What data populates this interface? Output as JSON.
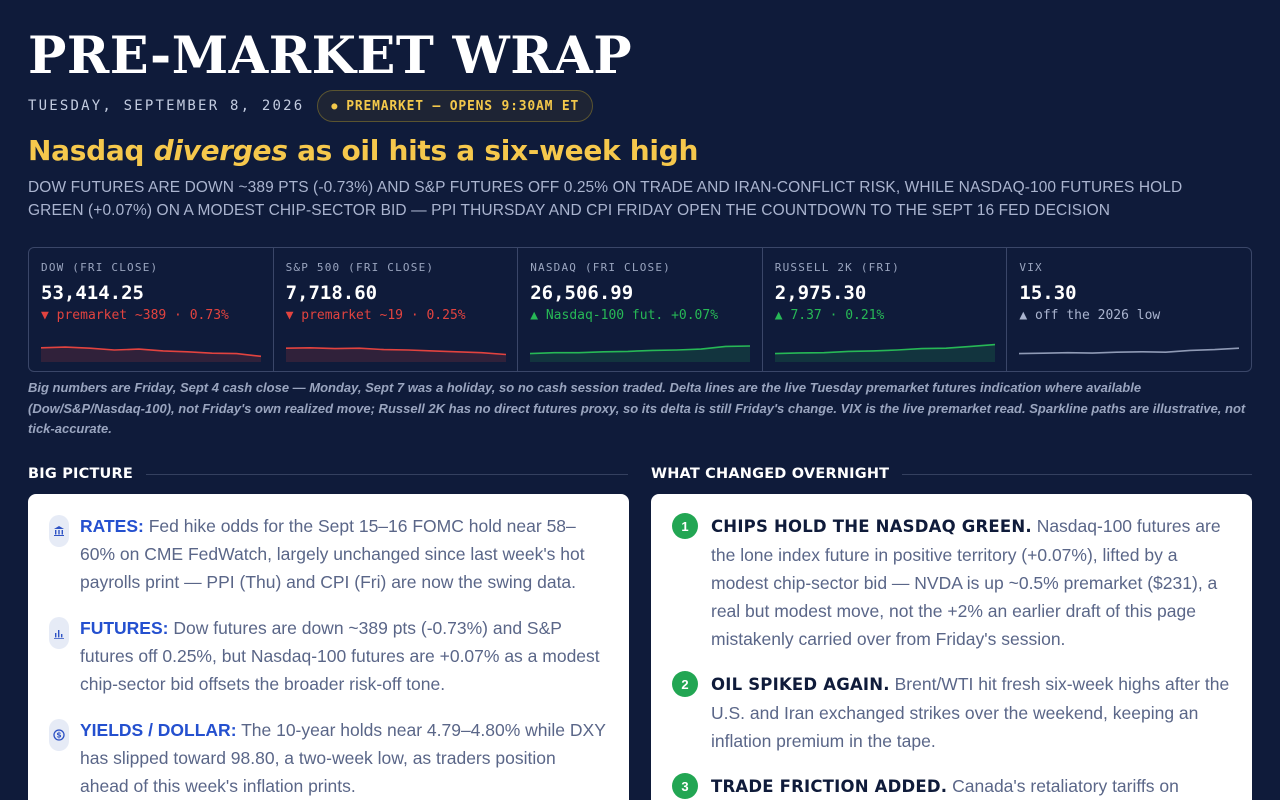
{
  "header": {
    "title": "PRE-MARKET WRAP",
    "date": "TUESDAY, SEPTEMBER 8, 2026",
    "status_pill": "PREMARKET — OPENS 9:30AM ET",
    "headline_before": "Nasdaq ",
    "headline_em": "diverges",
    "headline_after": " as oil hits a six-week high",
    "dek": "Dow futures are down ~389 pts (-0.73%) and S&P futures off 0.25% on trade and Iran-conflict risk, while Nasdaq-100 futures hold green (+0.07%) on a modest chip-sector bid — PPI Thursday and CPI Friday open the countdown to the Sept 16 Fed decision"
  },
  "ticker": [
    {
      "label": "DOW (FRI CLOSE)",
      "value": "53,414.25",
      "arrow": "▼",
      "delta": "premarket ~389 · 0.73%",
      "direction": "down",
      "color": "#e2433f",
      "spark": [
        0.62,
        0.66,
        0.6,
        0.5,
        0.55,
        0.45,
        0.4,
        0.32,
        0.3,
        0.15
      ]
    },
    {
      "label": "S&P 500 (FRI CLOSE)",
      "value": "7,718.60",
      "arrow": "▼",
      "delta": "premarket ~19 · 0.25%",
      "direction": "down",
      "color": "#e2433f",
      "spark": [
        0.6,
        0.62,
        0.58,
        0.6,
        0.52,
        0.5,
        0.45,
        0.4,
        0.35,
        0.25
      ]
    },
    {
      "label": "NASDAQ (FRI CLOSE)",
      "value": "26,506.99",
      "arrow": "▲",
      "delta": "Nasdaq-100 fut. +0.07%",
      "direction": "up",
      "color": "#27b856",
      "spark": [
        0.3,
        0.35,
        0.35,
        0.4,
        0.42,
        0.48,
        0.5,
        0.55,
        0.7,
        0.72
      ]
    },
    {
      "label": "RUSSELL 2K (FRI)",
      "value": "2,975.30",
      "arrow": "▲",
      "delta": "7.37 · 0.21%",
      "direction": "up",
      "color": "#27b856",
      "spark": [
        0.3,
        0.34,
        0.35,
        0.42,
        0.45,
        0.5,
        0.58,
        0.6,
        0.7,
        0.8
      ]
    },
    {
      "label": "VIX",
      "value": "15.30",
      "arrow": "▲",
      "delta": "off the 2026 low",
      "direction": "flat",
      "color": "#8f9ab5",
      "spark": [
        0.3,
        0.32,
        0.35,
        0.33,
        0.38,
        0.4,
        0.38,
        0.48,
        0.52,
        0.6
      ]
    }
  ],
  "footnote": "Big numbers are Friday, Sept 4 cash close — Monday, Sept 7 was a holiday, so no cash session traded. Delta lines are the live Tuesday premarket futures indication where available (Dow/S&P/Nasdaq-100), not Friday's own realized move; Russell 2K has no direct futures proxy, so its delta is still Friday's change. VIX is the live premarket read. Sparkline paths are illustrative, not tick-accurate.",
  "big_picture": {
    "heading": "BIG PICTURE",
    "items": [
      {
        "icon": "bank-icon",
        "key": "RATES:",
        "text": " Fed hike odds for the Sept 15–16 FOMC hold near 58–60% on CME FedWatch, largely unchanged since last week's hot payrolls print — PPI (Thu) and CPI (Fri) are now the swing data."
      },
      {
        "icon": "bar-chart-icon",
        "key": "FUTURES:",
        "text": " Dow futures are down ~389 pts (-0.73%) and S&P futures off 0.25%, but Nasdaq-100 futures are +0.07% as a modest chip-sector bid offsets the broader risk-off tone."
      },
      {
        "icon": "dollar-coin-icon",
        "key": "YIELDS / DOLLAR:",
        "text": " The 10-year holds near 4.79–4.80% while DXY has slipped toward 98.80, a two-week low, as traders position ahead of this week's inflation prints."
      }
    ]
  },
  "what_changed": {
    "heading": "WHAT CHANGED OVERNIGHT",
    "items": [
      {
        "num": "1",
        "key": "CHIPS HOLD THE NASDAQ GREEN.",
        "text": " Nasdaq-100 futures are the lone index future in positive territory (+0.07%), lifted by a modest chip-sector bid — NVDA is up ~0.5% premarket ($231), a real but modest move, not the +2% an earlier draft of this page mistakenly carried over from Friday's session."
      },
      {
        "num": "2",
        "key": "OIL SPIKED AGAIN.",
        "text": " Brent/WTI hit fresh six-week highs after the U.S. and Iran exchanged strikes over the weekend, keeping an inflation premium in the tape."
      },
      {
        "num": "3",
        "key": "TRADE FRICTION ADDED.",
        "text": " Canada's retaliatory tariffs on"
      }
    ]
  }
}
